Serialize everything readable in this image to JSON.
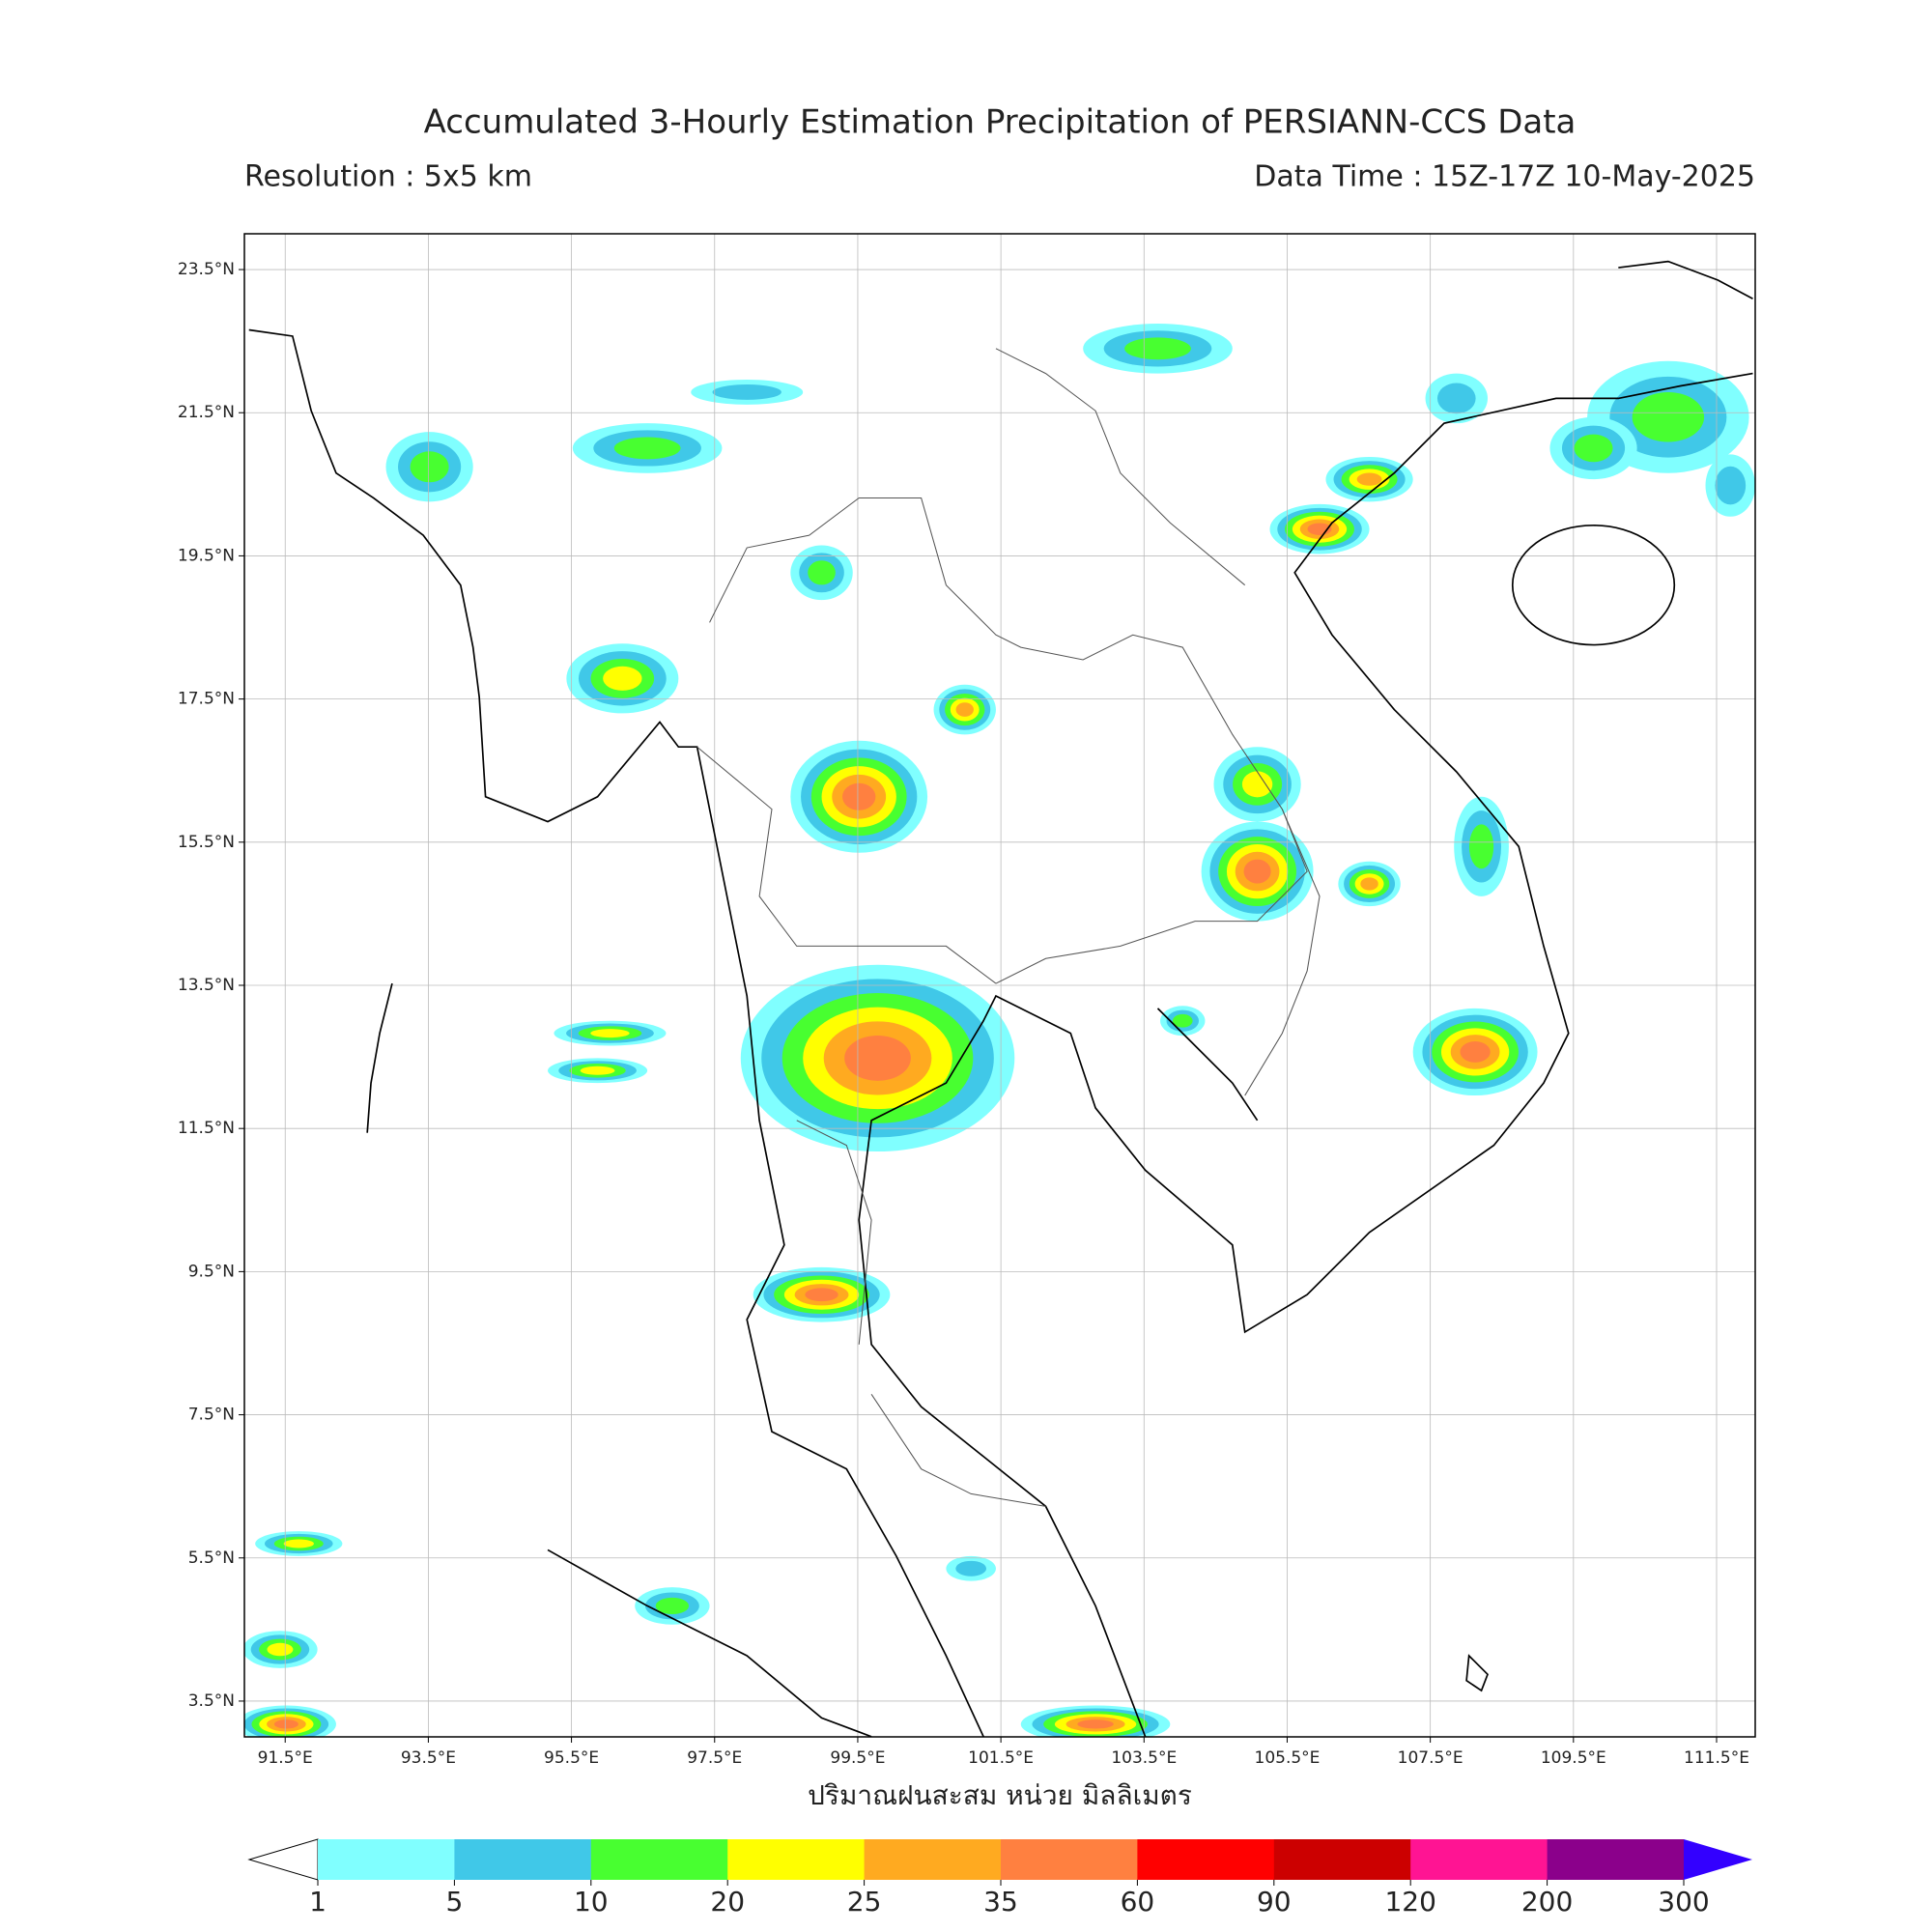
{
  "map": {
    "type": "map",
    "title": "Accumulated 3-Hourly Estimation Precipitation of PERSIANN-CCS Data",
    "resolution_label": "Resolution : 5x5 km",
    "data_time_label": "Data Time : 15Z-17Z 10-May-2025",
    "xlim": [
      90.93,
      112.04
    ],
    "ylim": [
      3.0,
      24.0
    ],
    "xticks": [
      {
        "value": 91.5,
        "label": "91.5°E"
      },
      {
        "value": 93.5,
        "label": "93.5°E"
      },
      {
        "value": 95.5,
        "label": "95.5°E"
      },
      {
        "value": 97.5,
        "label": "97.5°E"
      },
      {
        "value": 99.5,
        "label": "99.5°E"
      },
      {
        "value": 101.5,
        "label": "101.5°E"
      },
      {
        "value": 103.5,
        "label": "103.5°E"
      },
      {
        "value": 105.5,
        "label": "105.5°E"
      },
      {
        "value": 107.5,
        "label": "107.5°E"
      },
      {
        "value": 109.5,
        "label": "109.5°E"
      },
      {
        "value": 111.5,
        "label": "111.5°E"
      }
    ],
    "yticks": [
      {
        "value": 23.5,
        "label": "23.5°N"
      },
      {
        "value": 21.5,
        "label": "21.5°N"
      },
      {
        "value": 19.5,
        "label": "19.5°N"
      },
      {
        "value": 17.5,
        "label": "17.5°N"
      },
      {
        "value": 15.5,
        "label": "15.5°N"
      },
      {
        "value": 13.5,
        "label": "13.5°N"
      },
      {
        "value": 11.5,
        "label": "11.5°N"
      },
      {
        "value": 9.5,
        "label": "9.5°N"
      },
      {
        "value": 7.5,
        "label": "7.5°N"
      },
      {
        "value": 5.5,
        "label": "5.5°N"
      },
      {
        "value": 3.5,
        "label": "3.5°N"
      }
    ],
    "grid": true,
    "xlabel": "ปริมาณฝนสะสม หน่วย มิลลิเมตร",
    "colorbar": {
      "levels": [
        1,
        5,
        10,
        20,
        25,
        35,
        60,
        90,
        120,
        200,
        300
      ],
      "colors": [
        "#80ffff",
        "#40c8e8",
        "#48ff30",
        "#ffff00",
        "#ffaa20",
        "#ff8040",
        "#ff0000",
        "#cc0000",
        "#ff1493",
        "#8b008b"
      ],
      "under_color": "#ffffff",
      "over_color": "#3300ff"
    }
  }
}
